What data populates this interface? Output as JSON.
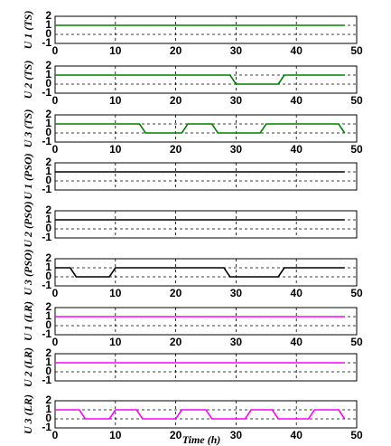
{
  "chart_data": [
    {
      "type": "line",
      "ylabel": "U 1 (TS)",
      "color": "#008000",
      "x": [
        0,
        48
      ],
      "values": [
        1,
        1
      ],
      "xlim": [
        0,
        50
      ],
      "ylim": [
        -1,
        2
      ],
      "xticks": [
        0,
        10,
        20,
        30,
        40,
        50
      ],
      "yticks": [
        2,
        1,
        0,
        -1
      ],
      "grid": true,
      "xticklabels": true
    },
    {
      "type": "line",
      "ylabel": "U 2 (TS)",
      "color": "#008000",
      "x": [
        0,
        29,
        30,
        37,
        38,
        48
      ],
      "values": [
        1,
        1,
        0,
        0,
        1,
        1
      ],
      "xlim": [
        0,
        50
      ],
      "ylim": [
        -1,
        2
      ],
      "xticks": [
        0,
        10,
        20,
        30,
        40,
        50
      ],
      "yticks": [
        2,
        1,
        0,
        -1
      ],
      "grid": true,
      "xticklabels": true
    },
    {
      "type": "line",
      "ylabel": "U 3 (TS)",
      "color": "#008000",
      "x": [
        0,
        14,
        15,
        21,
        22,
        26,
        27,
        34,
        35,
        47,
        48
      ],
      "values": [
        1,
        1,
        0,
        0,
        1,
        1,
        0,
        0,
        1,
        1,
        0
      ],
      "xlim": [
        0,
        50
      ],
      "ylim": [
        -1,
        2
      ],
      "xticks": [
        0,
        10,
        20,
        30,
        40,
        50
      ],
      "yticks": [
        2,
        1,
        0,
        -1
      ],
      "grid": true,
      "xticklabels": true
    },
    {
      "type": "line",
      "ylabel": "U 1 (PSO)",
      "color": "#000000",
      "x": [
        0,
        48
      ],
      "values": [
        1,
        1
      ],
      "xlim": [
        0,
        50
      ],
      "ylim": [
        -1,
        2
      ],
      "xticks": [
        0,
        10,
        20,
        30,
        40,
        50
      ],
      "yticks": [
        2,
        1,
        0,
        -1
      ],
      "grid": true,
      "xticklabels": false
    },
    {
      "type": "line",
      "ylabel": "U 2 (PSO)",
      "color": "#000000",
      "x": [
        0,
        48
      ],
      "values": [
        1,
        1
      ],
      "xlim": [
        0,
        50
      ],
      "ylim": [
        -1,
        2
      ],
      "xticks": [
        0,
        10,
        20,
        30,
        40,
        50
      ],
      "yticks": [
        2,
        1,
        0,
        -1
      ],
      "grid": true,
      "xticklabels": false
    },
    {
      "type": "line",
      "ylabel": "U 3 (PSO)",
      "color": "#000000",
      "x": [
        0,
        2.5,
        3.5,
        9,
        10,
        28,
        29,
        37,
        38,
        48
      ],
      "values": [
        1,
        1,
        0,
        0,
        1,
        1,
        0,
        0,
        1,
        1
      ],
      "xlim": [
        0,
        50
      ],
      "ylim": [
        -1,
        2
      ],
      "xticks": [
        0,
        10,
        20,
        30,
        40,
        50
      ],
      "yticks": [
        2,
        1,
        0,
        -1
      ],
      "grid": true,
      "xticklabels": true
    },
    {
      "type": "line",
      "ylabel": "U 1 (LR)",
      "color": "#ff00ff",
      "x": [
        0,
        48
      ],
      "values": [
        1,
        1
      ],
      "xlim": [
        0,
        50
      ],
      "ylim": [
        -1,
        2
      ],
      "xticks": [
        0,
        10,
        20,
        30,
        40,
        50
      ],
      "yticks": [
        2,
        1,
        0,
        -1
      ],
      "grid": true,
      "xticklabels": true
    },
    {
      "type": "line",
      "ylabel": "U 2 (LR)",
      "color": "#ff00ff",
      "x": [
        0,
        48
      ],
      "values": [
        1,
        1
      ],
      "xlim": [
        0,
        50
      ],
      "ylim": [
        -1,
        2
      ],
      "xticks": [
        0,
        10,
        20,
        30,
        40,
        50
      ],
      "yticks": [
        2,
        1,
        0,
        -1
      ],
      "grid": true,
      "xticklabels": false
    },
    {
      "type": "line",
      "ylabel": "U 3 (LR)",
      "xlabel": "Time (h)",
      "color": "#ff00ff",
      "x": [
        0,
        4,
        5,
        9,
        10,
        13.5,
        14.5,
        20,
        21,
        25,
        26,
        31.5,
        32.5,
        36,
        37,
        42,
        43,
        47,
        48
      ],
      "values": [
        1,
        1,
        0,
        0,
        1,
        1,
        0,
        0,
        1,
        1,
        0,
        0,
        1,
        1,
        0,
        0,
        1,
        1,
        0
      ],
      "xlim": [
        0,
        50
      ],
      "ylim": [
        -1,
        2
      ],
      "xticks": [
        0,
        10,
        20,
        30,
        40,
        50
      ],
      "yticks": [
        2,
        1,
        0,
        -1
      ],
      "grid": true,
      "xticklabels": true
    }
  ]
}
